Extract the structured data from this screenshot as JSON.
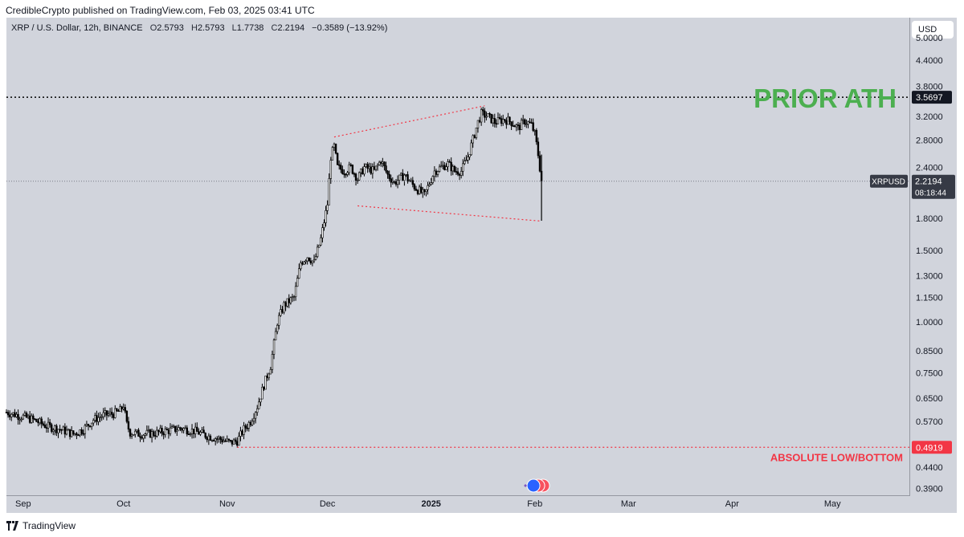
{
  "publisher_line": "CredibleCrypto published on TradingView.com, Feb 03, 2025 03:41 UTC",
  "legend": {
    "symbol": "XRP / U.S. Dollar, 12h, BINANCE",
    "o_label": "O",
    "o": "2.5793",
    "h_label": "H",
    "h": "2.5793",
    "l_label": "L",
    "l": "1.7738",
    "c_label": "C",
    "c": "2.2194",
    "change": "−0.3589 (−13.92%)"
  },
  "currency_button": "USD",
  "footer_brand": "TradingView",
  "colors": {
    "background": "#d1d4dc",
    "candles": "#000000",
    "ath_line": "#000000",
    "ath_text": "#4caf50",
    "low_line": "#f23645",
    "low_text": "#f23645",
    "wedge": "#f23645",
    "price_line": "#787b86",
    "xrp_badge": "#363a45"
  },
  "chart_data": {
    "type": "candlestick",
    "scale": "log",
    "ylim": [
      0.375,
      5.6
    ],
    "x_ticks": [
      "Sep",
      "Oct",
      "Nov",
      "Dec",
      "2025",
      "Feb",
      "Mar",
      "Apr",
      "May"
    ],
    "x_tick_dates": [
      "2024-09-01",
      "2024-10-01",
      "2024-11-01",
      "2024-12-01",
      "2025-01-01",
      "2025-02-01",
      "2025-03-01",
      "2025-04-01",
      "2025-05-01"
    ],
    "y_ticks": [
      "5.0000",
      "4.4000",
      "3.8000",
      "3.2000",
      "2.8000",
      "2.4000",
      "1.8000",
      "1.5000",
      "1.3000",
      "1.1500",
      "1.0000",
      "0.8500",
      "0.7500",
      "0.6500",
      "0.5700",
      "0.4400",
      "0.3900"
    ],
    "series": [
      {
        "points": [
          [
            "2024-08-27",
            0.6
          ],
          [
            "2024-09-01",
            0.585
          ],
          [
            "2024-09-04",
            0.575
          ],
          [
            "2024-09-08",
            0.555
          ],
          [
            "2024-09-12",
            0.545
          ],
          [
            "2024-09-16",
            0.53
          ],
          [
            "2024-09-19",
            0.545
          ],
          [
            "2024-09-22",
            0.575
          ],
          [
            "2024-09-25",
            0.59
          ],
          [
            "2024-09-28",
            0.595
          ],
          [
            "2024-09-30",
            0.605
          ],
          [
            "2024-10-01",
            0.625
          ],
          [
            "2024-10-02",
            0.56
          ],
          [
            "2024-10-03",
            0.535
          ],
          [
            "2024-10-06",
            0.53
          ],
          [
            "2024-10-10",
            0.532
          ],
          [
            "2024-10-14",
            0.54
          ],
          [
            "2024-10-18",
            0.548
          ],
          [
            "2024-10-22",
            0.54
          ],
          [
            "2024-10-26",
            0.525
          ],
          [
            "2024-10-30",
            0.515
          ],
          [
            "2024-11-02",
            0.505
          ],
          [
            "2024-11-04",
            0.51
          ],
          [
            "2024-11-06",
            0.545
          ],
          [
            "2024-11-08",
            0.57
          ],
          [
            "2024-11-10",
            0.62
          ],
          [
            "2024-11-12",
            0.7
          ],
          [
            "2024-11-14",
            0.78
          ],
          [
            "2024-11-16",
            1.0
          ],
          [
            "2024-11-18",
            1.1
          ],
          [
            "2024-11-21",
            1.15
          ],
          [
            "2024-11-23",
            1.4
          ],
          [
            "2024-11-25",
            1.45
          ],
          [
            "2024-11-27",
            1.4
          ],
          [
            "2024-11-29",
            1.6
          ],
          [
            "2024-12-01",
            1.95
          ],
          [
            "2024-12-02",
            2.55
          ],
          [
            "2024-12-03",
            2.7
          ],
          [
            "2024-12-04",
            2.4
          ],
          [
            "2024-12-06",
            2.35
          ],
          [
            "2024-12-08",
            2.4
          ],
          [
            "2024-12-10",
            2.25
          ],
          [
            "2024-12-12",
            2.4
          ],
          [
            "2024-12-15",
            2.35
          ],
          [
            "2024-12-17",
            2.5
          ],
          [
            "2024-12-19",
            2.3
          ],
          [
            "2024-12-21",
            2.2
          ],
          [
            "2024-12-24",
            2.3
          ],
          [
            "2024-12-27",
            2.15
          ],
          [
            "2024-12-30",
            2.05
          ],
          [
            "2025-01-02",
            2.35
          ],
          [
            "2025-01-04",
            2.4
          ],
          [
            "2025-01-06",
            2.45
          ],
          [
            "2025-01-08",
            2.35
          ],
          [
            "2025-01-10",
            2.35
          ],
          [
            "2025-01-12",
            2.55
          ],
          [
            "2025-01-14",
            2.9
          ],
          [
            "2025-01-15",
            3.1
          ],
          [
            "2025-01-16",
            3.25
          ],
          [
            "2025-01-18",
            3.2
          ],
          [
            "2025-01-20",
            3.1
          ],
          [
            "2025-01-23",
            3.15
          ],
          [
            "2025-01-25",
            3.1
          ],
          [
            "2025-01-27",
            3.0
          ],
          [
            "2025-01-29",
            3.12
          ],
          [
            "2025-01-31",
            3.05
          ],
          [
            "2025-02-01",
            2.9
          ],
          [
            "2025-02-02",
            2.58
          ],
          [
            "2025-02-03",
            2.219
          ]
        ]
      }
    ],
    "annotations": {
      "ath": {
        "label": "PRIOR ATH",
        "value": 3.5697,
        "value_text": "3.5697"
      },
      "low": {
        "label": "ABSOLUTE LOW/BOTTOM",
        "value": 0.4919,
        "value_text": "0.4919",
        "start_date": "2024-11-04"
      },
      "wedge": {
        "upper": [
          [
            "2024-12-03",
            2.85
          ],
          [
            "2025-01-17",
            3.4
          ]
        ],
        "lower": [
          [
            "2024-12-10",
            1.93
          ],
          [
            "2025-02-03",
            1.77
          ]
        ]
      },
      "current": {
        "symbol": "XRPUSD",
        "price": 2.2194,
        "price_text": "2.2194",
        "countdown": "08:18:44"
      },
      "low_wick": 1.7738
    }
  }
}
